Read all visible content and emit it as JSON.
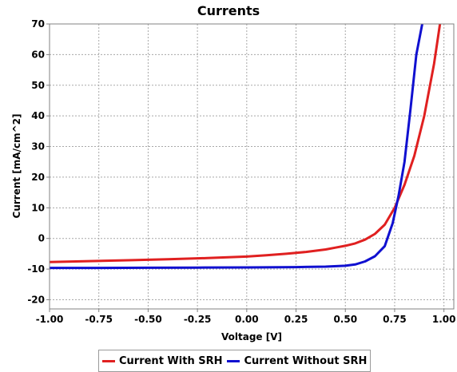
{
  "chart_data": {
    "type": "line",
    "title": "Currents",
    "xlabel": "Voltage [V]",
    "ylabel": "Current [mA/cm^2]",
    "xlim": [
      -1.0,
      1.05
    ],
    "ylim": [
      -23,
      70
    ],
    "x_ticks": [
      -1.0,
      -0.75,
      -0.5,
      -0.25,
      0.0,
      0.25,
      0.5,
      0.75,
      1.0
    ],
    "x_tick_labels": [
      "-1.00",
      "-0.75",
      "-0.50",
      "-0.25",
      "0.00",
      "0.25",
      "0.50",
      "0.75",
      "1.00"
    ],
    "y_ticks": [
      -20,
      -10,
      0,
      10,
      20,
      30,
      40,
      50,
      60,
      70
    ],
    "y_tick_labels": [
      "-20",
      "-10",
      "0",
      "10",
      "20",
      "30",
      "40",
      "50",
      "60",
      "70"
    ],
    "grid": true,
    "legend_position": "bottom",
    "series": [
      {
        "name": "Current With SRH",
        "color": "#e02020",
        "x": [
          -1.0,
          -0.8,
          -0.6,
          -0.4,
          -0.2,
          0.0,
          0.1,
          0.2,
          0.3,
          0.4,
          0.45,
          0.5,
          0.55,
          0.6,
          0.65,
          0.7,
          0.75,
          0.8,
          0.85,
          0.9,
          0.95,
          0.98
        ],
        "y": [
          -7.7,
          -7.4,
          -7.1,
          -6.8,
          -6.4,
          -5.9,
          -5.5,
          -5.0,
          -4.4,
          -3.6,
          -3.0,
          -2.4,
          -1.6,
          -0.4,
          1.5,
          4.5,
          10.0,
          17.5,
          27.0,
          40.0,
          57.0,
          70.0
        ]
      },
      {
        "name": "Current Without SRH",
        "color": "#1010d0",
        "x": [
          -1.0,
          -0.75,
          -0.5,
          -0.25,
          0.0,
          0.25,
          0.4,
          0.5,
          0.55,
          0.6,
          0.65,
          0.7,
          0.74,
          0.77,
          0.8,
          0.83,
          0.86,
          0.89
        ],
        "y": [
          -9.6,
          -9.6,
          -9.55,
          -9.5,
          -9.45,
          -9.35,
          -9.2,
          -8.9,
          -8.5,
          -7.5,
          -5.8,
          -2.5,
          5.0,
          14.0,
          25.0,
          42.0,
          60.0,
          70.0
        ]
      }
    ]
  }
}
